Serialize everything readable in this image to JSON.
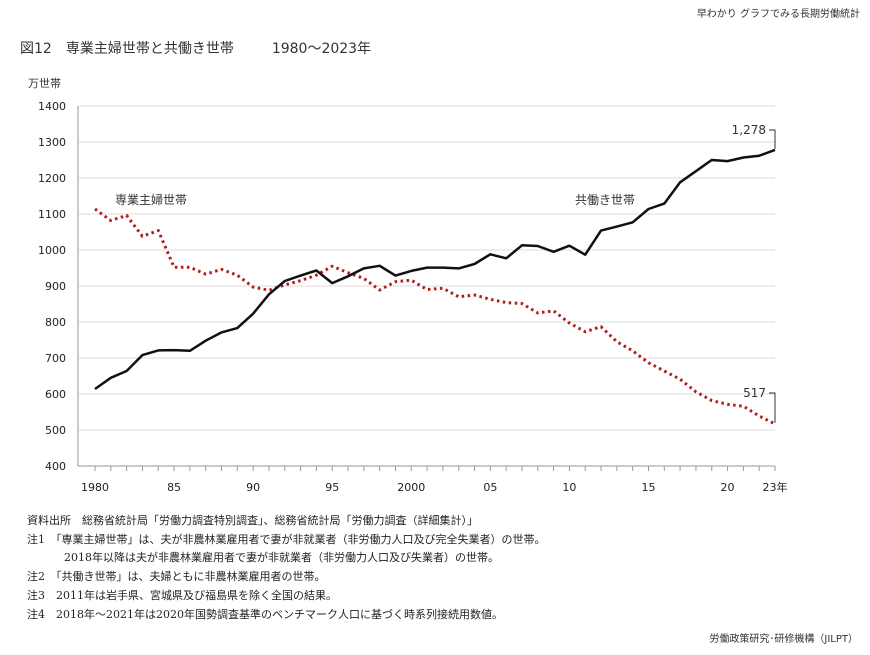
{
  "header": {
    "series_name": "早わかり グラフでみる長期労働統計"
  },
  "figure": {
    "title": "図12　専業主婦世帯と共働き世帯",
    "range": "1980～2023年",
    "unit": "万世帯"
  },
  "chart_data": {
    "type": "line",
    "title": "図12　専業主婦世帯と共働き世帯　1980～2023年",
    "ylabel": "万世帯",
    "xlabel": "",
    "ylim": [
      400,
      1400
    ],
    "yticks": [
      400,
      500,
      600,
      700,
      800,
      900,
      1000,
      1100,
      1200,
      1300,
      1400
    ],
    "x": [
      1980,
      1981,
      1982,
      1983,
      1984,
      1985,
      1986,
      1987,
      1988,
      1989,
      1990,
      1991,
      1992,
      1993,
      1994,
      1995,
      1996,
      1997,
      1998,
      1999,
      2000,
      2001,
      2002,
      2003,
      2004,
      2005,
      2006,
      2007,
      2008,
      2009,
      2010,
      2011,
      2012,
      2013,
      2014,
      2015,
      2016,
      2017,
      2018,
      2019,
      2020,
      2021,
      2022,
      2023
    ],
    "xtick_labels": [
      {
        "x": 1980,
        "label": "1980"
      },
      {
        "x": 1985,
        "label": "85"
      },
      {
        "x": 1990,
        "label": "90"
      },
      {
        "x": 1995,
        "label": "95"
      },
      {
        "x": 2000,
        "label": "2000"
      },
      {
        "x": 2005,
        "label": "05"
      },
      {
        "x": 2010,
        "label": "10"
      },
      {
        "x": 2015,
        "label": "15"
      },
      {
        "x": 2020,
        "label": "20"
      },
      {
        "x": 2023,
        "label": "23年"
      }
    ],
    "grid": true,
    "series": [
      {
        "name": "専業主婦世帯",
        "color": "#b01c1c",
        "style": "dotted",
        "values": [
          1114,
          1082,
          1096,
          1038,
          1054,
          952,
          952,
          933,
          946,
          930,
          897,
          888,
          903,
          915,
          930,
          955,
          937,
          921,
          889,
          912,
          916,
          890,
          894,
          870,
          875,
          863,
          854,
          851,
          825,
          831,
          797,
          773,
          787,
          745,
          720,
          687,
          664,
          641,
          606,
          582,
          571,
          566,
          539,
          517
        ],
        "end_label": "517"
      },
      {
        "name": "共働き世帯",
        "color": "#111111",
        "style": "solid",
        "values": [
          614,
          645,
          664,
          708,
          721,
          722,
          720,
          748,
          771,
          783,
          823,
          877,
          914,
          929,
          943,
          908,
          927,
          949,
          956,
          929,
          942,
          951,
          951,
          949,
          961,
          988,
          977,
          1013,
          1011,
          995,
          1012,
          987,
          1054,
          1065,
          1077,
          1114,
          1129,
          1188,
          1219,
          1250,
          1247,
          1257,
          1262,
          1278
        ],
        "end_label": "1,278"
      }
    ]
  },
  "notes": {
    "source": "資料出所　総務省統計局「労働力調査特別調査」、総務省統計局「労働力調査（詳細集計）」",
    "note1": "注1　「専業主婦世帯」は、夫が非農林業雇用者で妻が非就業者（非労働力人口及び完全失業者）の世帯。",
    "note1b": "2018年以降は夫が非農林業雇用者で妻が非就業者（非労働力人口及び失業者）の世帯。",
    "note2": "注2　「共働き世帯」は、夫婦ともに非農林業雇用者の世帯。",
    "note3": "注3　2011年は岩手県、宮城県及び福島県を除く全国の結果。",
    "note4": "注4　2018年～2021年は2020年国勢調査基準のベンチマーク人口に基づく時系列接続用数値。"
  },
  "footer": {
    "publisher": "労働政策研究･研修機構（JILPT）"
  }
}
